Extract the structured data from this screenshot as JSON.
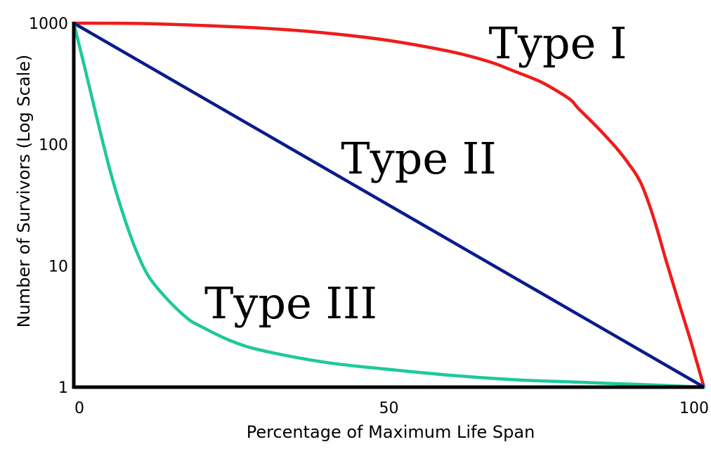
{
  "chart_data": {
    "type": "line",
    "title": "",
    "xlabel": "Percentage of Maximum Life Span",
    "ylabel": "Number of Survivors (Log Scale)",
    "xlim": [
      0,
      100
    ],
    "ylim": [
      1,
      1000
    ],
    "y_scale": "log",
    "grid": false,
    "x_ticks": [
      {
        "value": 0,
        "label": "0"
      },
      {
        "value": 50,
        "label": "50"
      },
      {
        "value": 100,
        "label": "100"
      }
    ],
    "y_ticks": [
      {
        "value": 1,
        "label": "1"
      },
      {
        "value": 10,
        "label": "10"
      },
      {
        "value": 100,
        "label": "100"
      },
      {
        "value": 1000,
        "label": "1000"
      }
    ],
    "series": [
      {
        "name": "Type I",
        "color": "#ee1c1c",
        "x": [
          0,
          10,
          20,
          30,
          40,
          50,
          60,
          66,
          70,
          74,
          77,
          79,
          80,
          83,
          86,
          88,
          90,
          92,
          94,
          96,
          98,
          100
        ],
        "y": [
          1000,
          995,
          960,
          910,
          830,
          720,
          580,
          480,
          400,
          330,
          270,
          230,
          200,
          140,
          95,
          70,
          48,
          25,
          11,
          5,
          2.3,
          1
        ]
      },
      {
        "name": "Type II",
        "color": "#0a1c8c",
        "x": [
          0,
          100
        ],
        "y": [
          1000,
          1
        ]
      },
      {
        "name": "Type III",
        "color": "#1ec99a",
        "x": [
          0,
          2,
          4,
          6,
          8,
          10,
          12,
          15,
          18,
          20,
          25,
          30,
          40,
          50,
          60,
          70,
          80,
          90,
          100
        ],
        "y": [
          1000,
          380,
          140,
          55,
          25,
          13,
          8,
          5.2,
          3.7,
          3.2,
          2.4,
          2.0,
          1.6,
          1.4,
          1.25,
          1.15,
          1.1,
          1.05,
          1
        ]
      }
    ],
    "annotations": [
      {
        "text": "Type I",
        "series": "Type I"
      },
      {
        "text": "Type II",
        "series": "Type II"
      },
      {
        "text": "Type III",
        "series": "Type III"
      }
    ]
  }
}
